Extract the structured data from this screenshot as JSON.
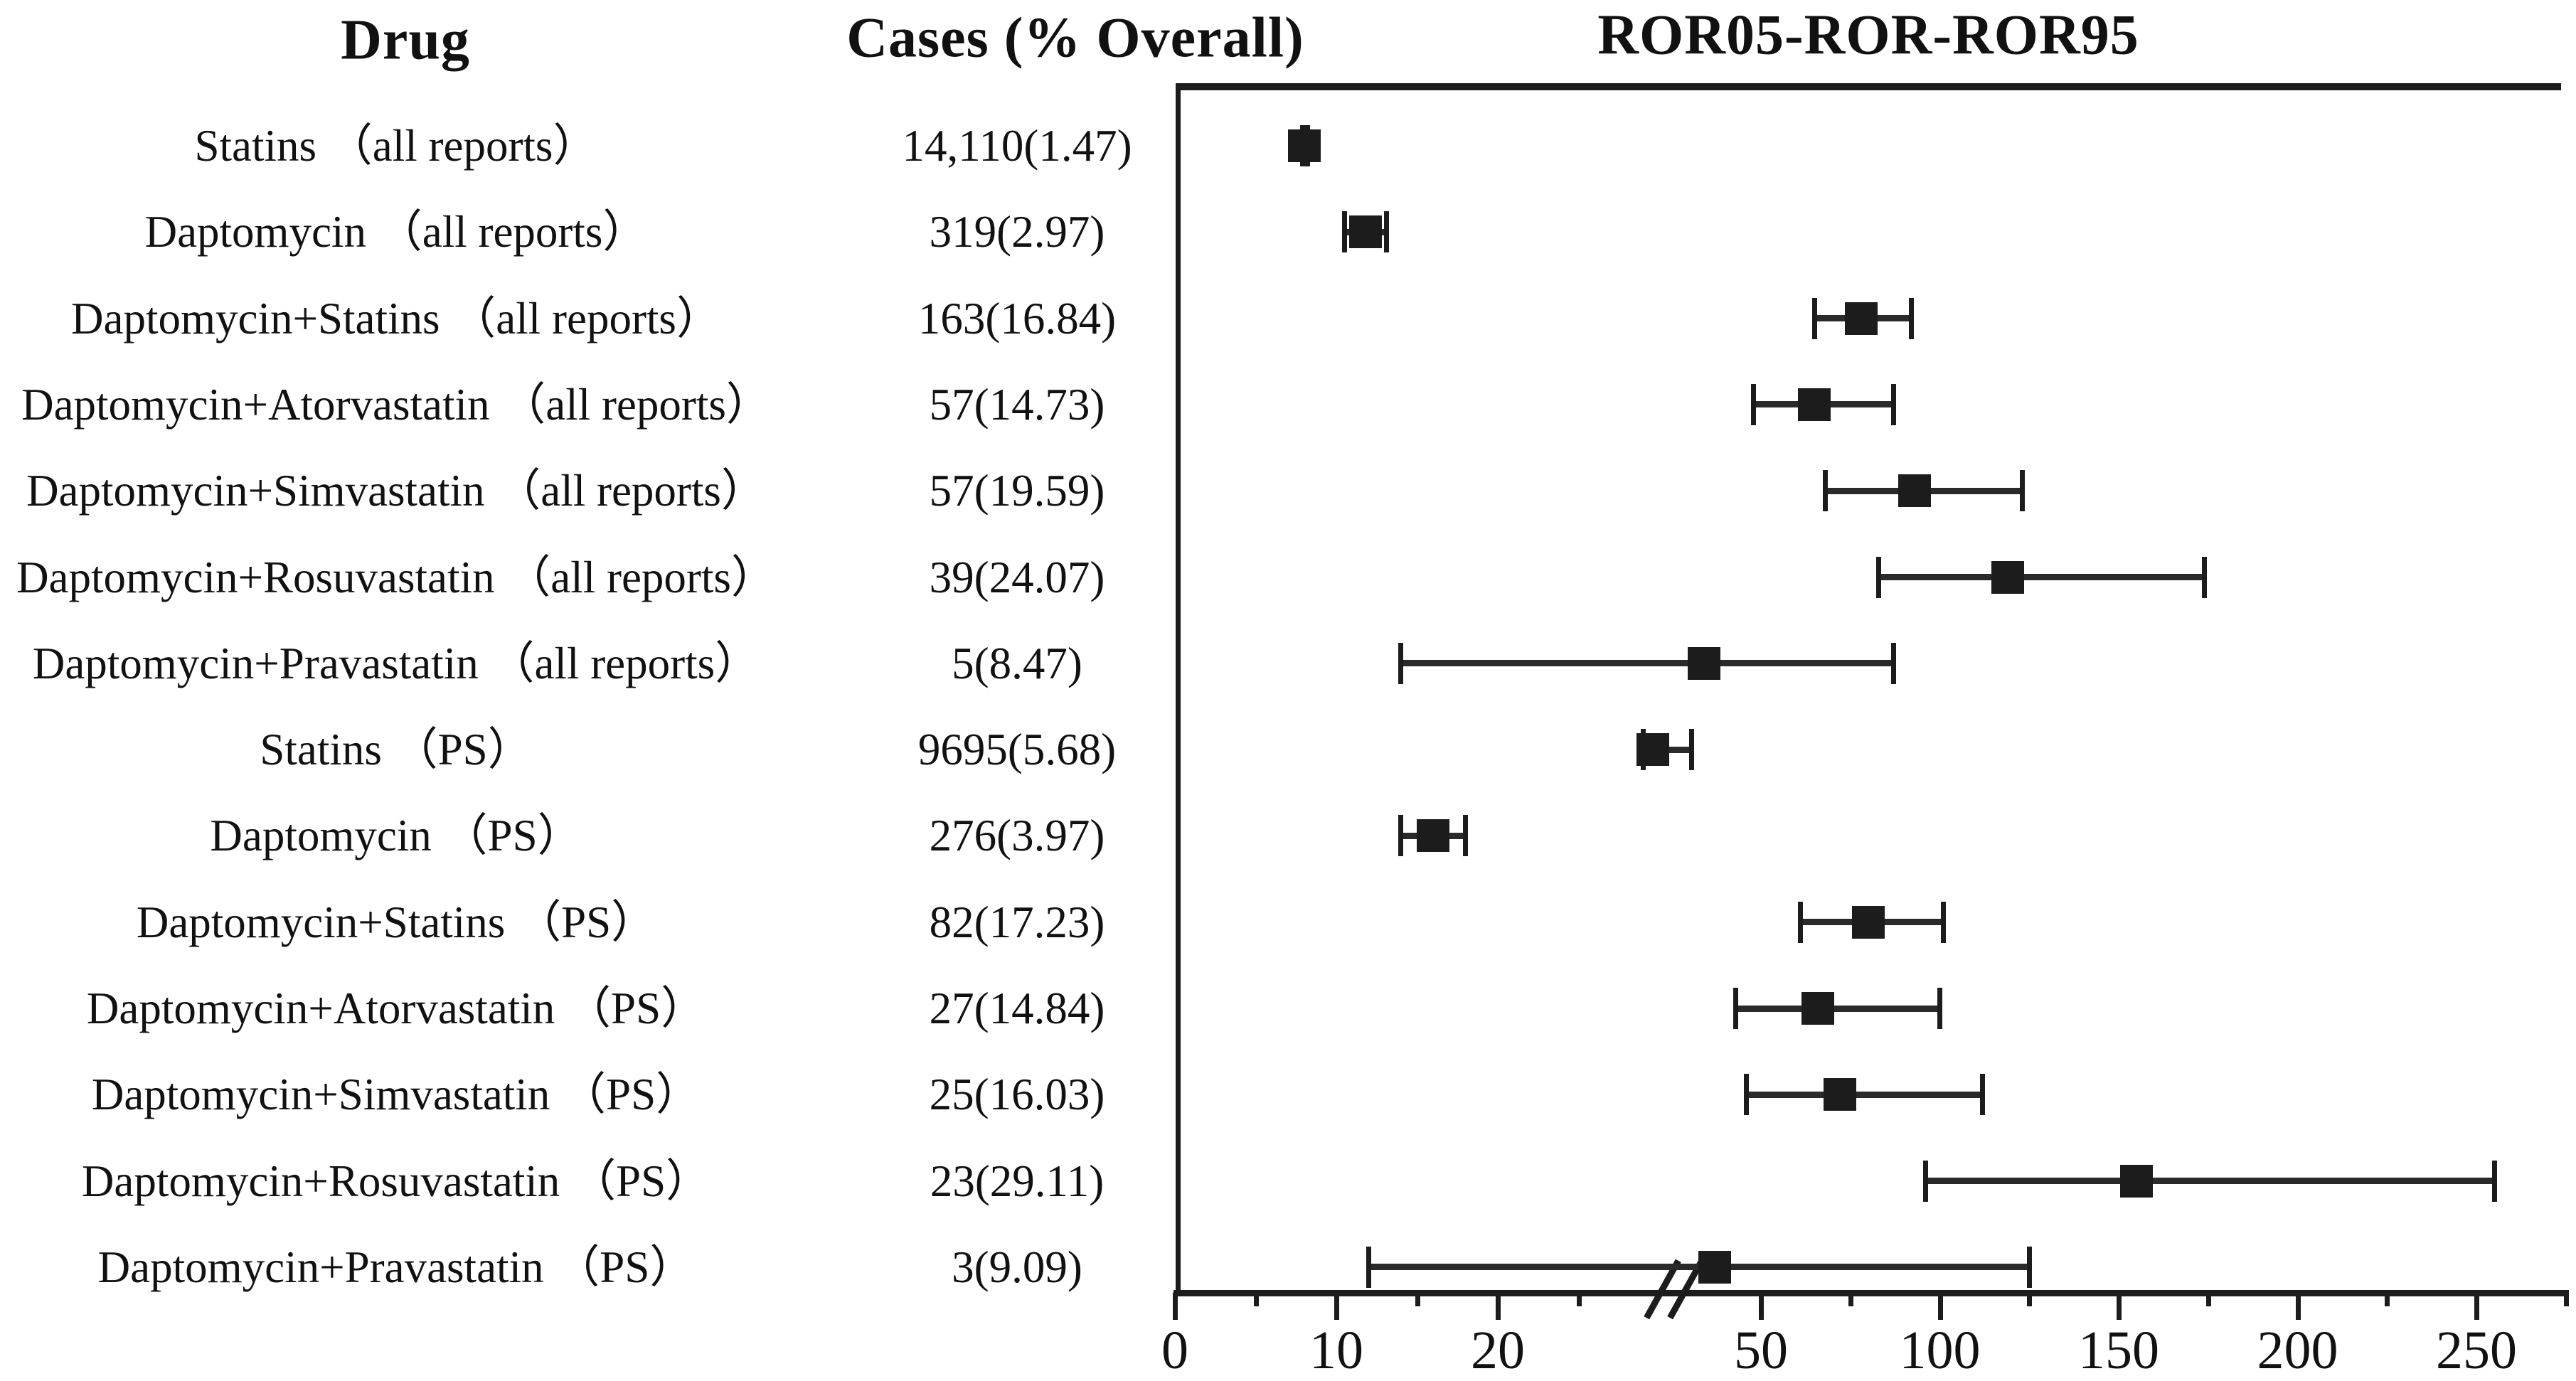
{
  "figure": {
    "columns": {
      "drug_header": "Drug",
      "cases_header": "Cases (% Overall)",
      "plot_header": "ROR05-ROR-ROR95"
    }
  },
  "chart_data": {
    "type": "forest",
    "title": "ROR05-ROR-ROR95",
    "columns": [
      "Drug",
      "Cases (% Overall)",
      "ROR05-ROR-ROR95"
    ],
    "legend_position": "none",
    "grid": false,
    "marker": "filled-square-with-capped-error-bars",
    "marker_color": "#1c1c1c",
    "rows": [
      {
        "drug": "Statins （all reports）",
        "cases": "14,110(1.47)",
        "ror05": 7.9,
        "ror": 8.0,
        "ror95": 8.2
      },
      {
        "drug": "Daptomycin （all reports）",
        "cases": "319(2.97)",
        "ror05": 10.5,
        "ror": 11.8,
        "ror95": 13.1
      },
      {
        "drug": "Daptomycin+Statins （all reports）",
        "cases": "163(16.84)",
        "ror05": 65,
        "ror": 78,
        "ror95": 92
      },
      {
        "drug": "Daptomycin+Atorvastatin （all reports）",
        "cases": "57(14.73)",
        "ror05": 48,
        "ror": 65,
        "ror95": 87
      },
      {
        "drug": "Daptomycin+Simvastatin （all reports）",
        "cases": "57(19.59)",
        "ror05": 68,
        "ror": 93,
        "ror95": 123
      },
      {
        "drug": "Daptomycin+Rosuvastatin （all reports）",
        "cases": "39(24.07)",
        "ror05": 83,
        "ror": 119,
        "ror95": 174
      },
      {
        "drug": "Daptomycin+Pravastatin （all reports）",
        "cases": "5(8.47)",
        "ror05": 14,
        "ror": 34,
        "ror95": 87
      },
      {
        "drug": "Statins （PS）",
        "cases": "9695(5.68)",
        "ror05": 29,
        "ror": 29.6,
        "ror95": 32
      },
      {
        "drug": "Daptomycin （PS）",
        "cases": "276(3.97)",
        "ror05": 14,
        "ror": 16,
        "ror95": 18
      },
      {
        "drug": "Daptomycin+Statins （PS）",
        "cases": "82(17.23)",
        "ror05": 61,
        "ror": 80,
        "ror95": 101
      },
      {
        "drug": "Daptomycin+Atorvastatin （PS）",
        "cases": "27(14.84)",
        "ror05": 43,
        "ror": 66,
        "ror95": 100
      },
      {
        "drug": "Daptomycin+Simvastatin （PS）",
        "cases": "25(16.03)",
        "ror05": 46,
        "ror": 72,
        "ror95": 112
      },
      {
        "drug": "Daptomycin+Rosuvastatin （PS）",
        "cases": "23(29.11)",
        "ror05": 96,
        "ror": 155,
        "ror95": 255
      },
      {
        "drug": "Daptomycin+Pravastatin （PS）",
        "cases": "3(9.09)",
        "ror05": 12,
        "ror": 37,
        "ror95": 125
      }
    ],
    "xaxis": {
      "major_ticks": [
        0,
        10,
        20,
        50,
        100,
        150,
        200,
        250
      ],
      "minor_ticks": [
        5,
        15,
        25,
        75,
        125,
        175,
        225,
        275
      ],
      "axis_break": true,
      "break_between": [
        30,
        45
      ],
      "scale_note": "linear 0-30 at fine scale, axis break, then linear 50-275 at compressed scale",
      "xlim_left_segment": [
        0,
        31
      ],
      "xlim_right_segment": [
        45,
        278
      ]
    }
  }
}
